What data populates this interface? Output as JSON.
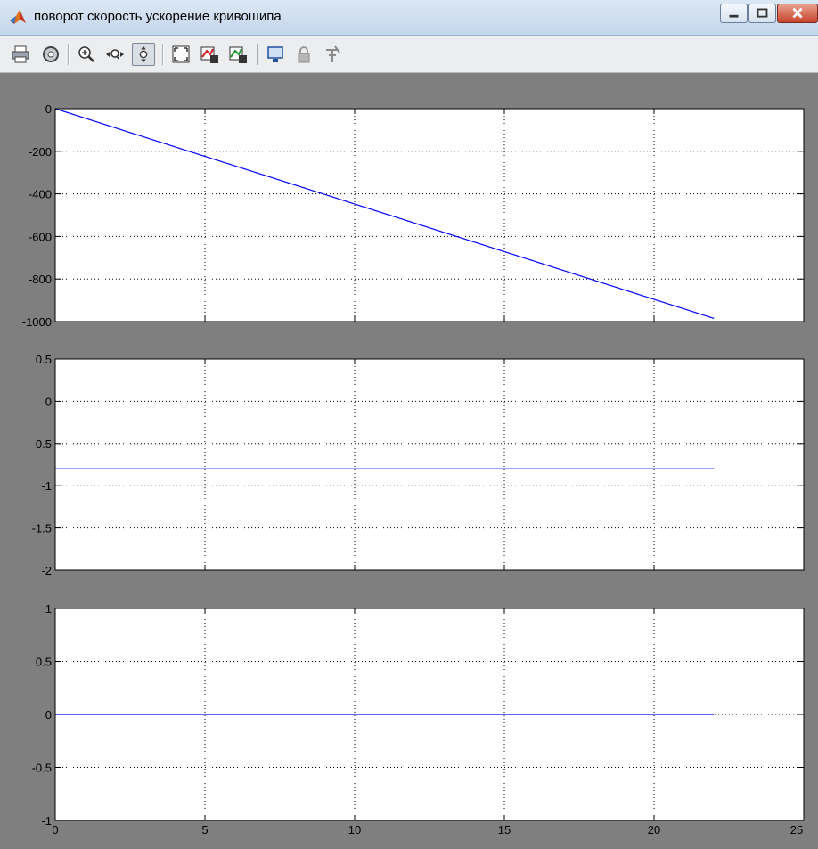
{
  "window": {
    "title": "поворот скорость ускорение кривошипа"
  },
  "toolbar": {
    "buttons": [
      {
        "name": "print-icon"
      },
      {
        "name": "parameters-icon"
      },
      {
        "name": "zoom-in-icon"
      },
      {
        "name": "zoom-x-icon"
      },
      {
        "name": "zoom-y-icon",
        "pressed": true
      },
      {
        "name": "autoscale-icon"
      },
      {
        "name": "save-axes-settings-icon"
      },
      {
        "name": "restore-axes-settings-icon"
      },
      {
        "name": "floating-scope-icon"
      },
      {
        "name": "lock-axes-icon"
      },
      {
        "name": "signal-selection-icon"
      }
    ]
  },
  "colors": {
    "figure_bg": "#7f7f7f",
    "axes_bg": "#ffffff",
    "line": "#0000ff"
  },
  "chart_data": [
    {
      "type": "line",
      "xlim": [
        0,
        25
      ],
      "ylim": [
        -1000,
        0
      ],
      "xticks": [
        "0",
        "5",
        "10",
        "15",
        "20",
        "25"
      ],
      "show_xticklabels": false,
      "yticks": [
        0,
        -200,
        -400,
        -600,
        -800,
        -1000
      ],
      "yticklabels": [
        "0",
        "-200",
        "-400",
        "-600",
        "-800",
        "-1000"
      ],
      "grid": true,
      "series": [
        {
          "color": "#0000ff",
          "x": [
            0,
            22
          ],
          "y": [
            0,
            -985
          ]
        }
      ]
    },
    {
      "type": "line",
      "xlim": [
        0,
        25
      ],
      "ylim": [
        -2,
        0.5
      ],
      "xticks": [
        "0",
        "5",
        "10",
        "15",
        "20",
        "25"
      ],
      "show_xticklabels": false,
      "yticks": [
        0.5,
        0,
        -0.5,
        -1,
        -1.5,
        -2
      ],
      "yticklabels": [
        "0.5",
        "0",
        "-0.5",
        "-1",
        "-1.5",
        "-2"
      ],
      "grid": true,
      "series": [
        {
          "color": "#0000ff",
          "x": [
            0,
            22
          ],
          "y": [
            -0.8,
            -0.8
          ]
        }
      ]
    },
    {
      "type": "line",
      "xlim": [
        0,
        25
      ],
      "ylim": [
        -1,
        1
      ],
      "xticks": [
        "0",
        "5",
        "10",
        "15",
        "20",
        "25"
      ],
      "show_xticklabels": true,
      "yticks": [
        1,
        0.5,
        0,
        -0.5,
        -1
      ],
      "yticklabels": [
        "1",
        "0.5",
        "0",
        "-0.5",
        "-1"
      ],
      "grid": true,
      "series": [
        {
          "color": "#0000ff",
          "x": [
            0,
            22
          ],
          "y": [
            0,
            0
          ]
        }
      ]
    }
  ]
}
